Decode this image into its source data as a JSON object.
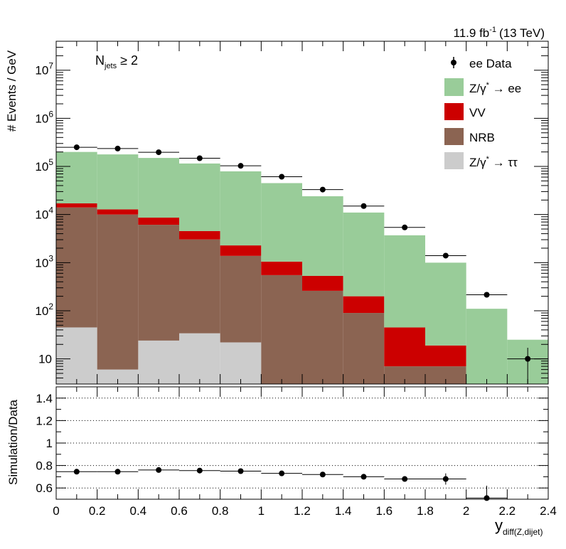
{
  "header": {
    "lumi": "11.9 fb",
    "lumi_exp": "-1",
    "energy": "(13 TeV)"
  },
  "njets_label": {
    "main": "N",
    "sub": "jets",
    "rel": "≥ 2"
  },
  "legend": {
    "data": "ee Data",
    "zee_pre": "Z/γ",
    "zee_sup": "*",
    "zee_post": " → ee",
    "vv": "VV",
    "nrb": "NRB",
    "ztt_pre": "Z/γ",
    "ztt_sup": "*",
    "ztt_post": " → ττ"
  },
  "axes": {
    "top_ylabel": "# Events / GeV",
    "bottom_ylabel": "Simulation/Data",
    "xlabel_main": "y",
    "xlabel_sub": "diff(Z,dijet)"
  },
  "colors": {
    "zee": "#99cc99",
    "vv": "#cc0000",
    "nrb": "#8b6452",
    "ztt": "#cccccc",
    "data": "#000000"
  },
  "chart_data": [
    {
      "type": "bar",
      "stacked": true,
      "log_y": true,
      "ylim": [
        3,
        40000000
      ],
      "xlim": [
        0,
        2.4
      ],
      "bin_edges": [
        0,
        0.2,
        0.4,
        0.6,
        0.8,
        1.0,
        1.2,
        1.4,
        1.6,
        1.8,
        2.0,
        2.2,
        2.4
      ],
      "yticks": [
        10,
        100,
        1000,
        10000,
        100000,
        1000000,
        10000000
      ],
      "ytick_labels": [
        {
          "base": "10",
          "exp": ""
        },
        {
          "base": "10",
          "exp": "2"
        },
        {
          "base": "10",
          "exp": "3"
        },
        {
          "base": "10",
          "exp": "4"
        },
        {
          "base": "10",
          "exp": "5"
        },
        {
          "base": "10",
          "exp": "6"
        },
        {
          "base": "10",
          "exp": "7"
        }
      ],
      "series": [
        {
          "name": "Z/γ* → ττ",
          "key": "ztt",
          "values": [
            45,
            6,
            24,
            34,
            22,
            0,
            0,
            0,
            0,
            0,
            0,
            0
          ]
        },
        {
          "name": "NRB",
          "key": "nrb",
          "values": [
            14000,
            10000,
            6100,
            3000,
            1360,
            550,
            260,
            90,
            7,
            7,
            0,
            0
          ]
        },
        {
          "name": "VV",
          "key": "vv",
          "values": [
            3000,
            2800,
            2500,
            1500,
            900,
            500,
            270,
            110,
            38,
            12,
            0,
            0
          ]
        },
        {
          "name": "Z/γ* → ee",
          "key": "zee",
          "values": [
            183000,
            165000,
            141500,
            110500,
            76700,
            43950,
            23470,
            10800,
            3655,
            980,
            110,
            25
          ]
        }
      ],
      "data_points": {
        "name": "ee Data",
        "x": [
          0.1,
          0.3,
          0.5,
          0.7,
          0.9,
          1.1,
          1.3,
          1.5,
          1.7,
          1.9,
          2.1,
          2.3
        ],
        "y": [
          250000,
          235000,
          197000,
          148000,
          103000,
          61000,
          33000,
          15000,
          5400,
          1400,
          215,
          10
        ],
        "y_err_low": [
          500,
          480,
          440,
          380,
          320,
          250,
          180,
          120,
          73,
          37,
          15,
          7
        ],
        "y_err_high": [
          500,
          480,
          440,
          380,
          320,
          250,
          180,
          120,
          73,
          37,
          15,
          7
        ]
      }
    },
    {
      "type": "scatter",
      "ylim": [
        0.5,
        1.5
      ],
      "xlim": [
        0,
        2.4
      ],
      "yticks": [
        0.6,
        0.8,
        1.0,
        1.2,
        1.4
      ],
      "ytick_labels": [
        "0.6",
        "0.8",
        "1",
        "1.2",
        "1.4"
      ],
      "xticks": [
        0,
        0.2,
        0.4,
        0.6,
        0.8,
        1.0,
        1.2,
        1.4,
        1.6,
        1.8,
        2.0,
        2.2,
        2.4
      ],
      "xtick_labels": [
        "0",
        "0.2",
        "0.4",
        "0.6",
        "0.8",
        "1",
        "1.2",
        "1.4",
        "1.6",
        "1.8",
        "2",
        "2.2",
        "2.4"
      ],
      "grid_lines": [
        0.6,
        0.8,
        1.0,
        1.2,
        1.4
      ],
      "x": [
        0.1,
        0.3,
        0.5,
        0.7,
        0.9,
        1.1,
        1.3,
        1.5,
        1.7,
        1.9,
        2.1
      ],
      "y": [
        0.745,
        0.745,
        0.76,
        0.755,
        0.75,
        0.73,
        0.72,
        0.7,
        0.68,
        0.68,
        0.51
      ],
      "y_err": [
        0.002,
        0.002,
        0.002,
        0.002,
        0.003,
        0.004,
        0.005,
        0.007,
        0.02,
        0.05,
        0.11
      ]
    }
  ]
}
